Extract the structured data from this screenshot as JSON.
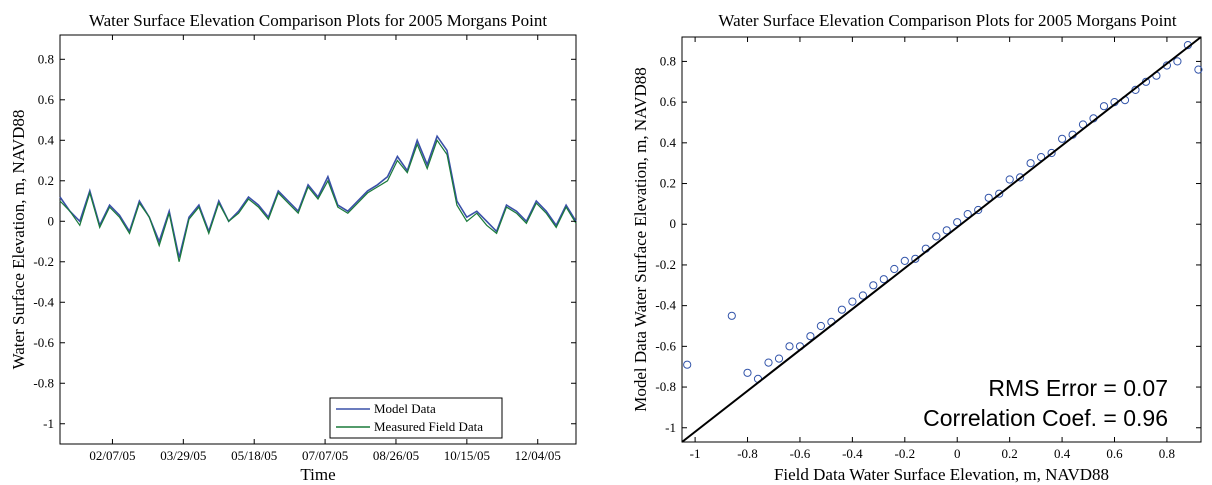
{
  "chart_data": [
    {
      "type": "line",
      "title": "Water Surface Elevation Comparison Plots for 2005 Morgans Point",
      "xlabel": "Time",
      "ylabel": "Water Surface Elevation, m, NAVD88",
      "xlim": [
        "2005-01-01",
        "2005-12-31"
      ],
      "ylim": [
        -1.1,
        0.92
      ],
      "xtick_labels": [
        "02/07/05",
        "03/29/05",
        "05/18/05",
        "07/07/05",
        "08/26/05",
        "10/15/05",
        "12/04/05"
      ],
      "yticks": [
        -1,
        -0.8,
        -0.6,
        -0.4,
        -0.2,
        0,
        0.2,
        0.4,
        0.6,
        0.8
      ],
      "legend_position": "bottom-right",
      "series": [
        {
          "name": "Model Data",
          "color": "#3a50a8",
          "x": [
            "2005-01-01",
            "2005-01-08",
            "2005-01-15",
            "2005-01-22",
            "2005-01-29",
            "2005-02-05",
            "2005-02-12",
            "2005-02-19",
            "2005-02-26",
            "2005-03-05",
            "2005-03-12",
            "2005-03-19",
            "2005-03-26",
            "2005-04-02",
            "2005-04-09",
            "2005-04-16",
            "2005-04-23",
            "2005-04-30",
            "2005-05-07",
            "2005-05-14",
            "2005-05-21",
            "2005-05-28",
            "2005-06-04",
            "2005-06-11",
            "2005-06-18",
            "2005-06-25",
            "2005-07-02",
            "2005-07-09",
            "2005-07-16",
            "2005-07-23",
            "2005-07-30",
            "2005-08-06",
            "2005-08-13",
            "2005-08-20",
            "2005-08-27",
            "2005-09-03",
            "2005-09-10",
            "2005-09-17",
            "2005-09-24",
            "2005-10-01",
            "2005-10-08",
            "2005-10-15",
            "2005-10-22",
            "2005-10-29",
            "2005-11-05",
            "2005-11-12",
            "2005-11-19",
            "2005-11-26",
            "2005-12-03",
            "2005-12-10",
            "2005-12-17",
            "2005-12-24",
            "2005-12-31"
          ],
          "y": [
            0.12,
            0.05,
            0.0,
            0.15,
            -0.02,
            0.08,
            0.03,
            -0.05,
            0.1,
            0.02,
            -0.1,
            0.05,
            -0.18,
            0.02,
            0.08,
            -0.05,
            0.1,
            0.0,
            0.05,
            0.12,
            0.08,
            0.02,
            0.15,
            0.1,
            0.05,
            0.18,
            0.12,
            0.22,
            0.08,
            0.05,
            0.1,
            0.15,
            0.18,
            0.22,
            0.32,
            0.25,
            0.4,
            0.28,
            0.42,
            0.35,
            0.1,
            0.02,
            0.05,
            0.0,
            -0.05,
            0.08,
            0.05,
            0.0,
            0.1,
            0.05,
            -0.02,
            0.08,
            0.0
          ]
        },
        {
          "name": "Measured Field Data",
          "color": "#1a7a3a",
          "x": [
            "2005-01-01",
            "2005-01-08",
            "2005-01-15",
            "2005-01-22",
            "2005-01-29",
            "2005-02-05",
            "2005-02-12",
            "2005-02-19",
            "2005-02-26",
            "2005-03-05",
            "2005-03-12",
            "2005-03-19",
            "2005-03-26",
            "2005-04-02",
            "2005-04-09",
            "2005-04-16",
            "2005-04-23",
            "2005-04-30",
            "2005-05-07",
            "2005-05-14",
            "2005-05-21",
            "2005-05-28",
            "2005-06-04",
            "2005-06-11",
            "2005-06-18",
            "2005-06-25",
            "2005-07-02",
            "2005-07-09",
            "2005-07-16",
            "2005-07-23",
            "2005-07-30",
            "2005-08-06",
            "2005-08-13",
            "2005-08-20",
            "2005-08-27",
            "2005-09-03",
            "2005-09-10",
            "2005-09-17",
            "2005-09-24",
            "2005-10-01",
            "2005-10-08",
            "2005-10-15",
            "2005-10-22",
            "2005-10-29",
            "2005-11-05",
            "2005-11-12",
            "2005-11-19",
            "2005-11-26",
            "2005-12-03",
            "2005-12-10",
            "2005-12-17",
            "2005-12-24",
            "2005-12-31"
          ],
          "y": [
            0.1,
            0.05,
            -0.02,
            0.14,
            -0.03,
            0.07,
            0.02,
            -0.06,
            0.09,
            0.02,
            -0.12,
            0.04,
            -0.2,
            0.01,
            0.07,
            -0.06,
            0.09,
            0.0,
            0.04,
            0.11,
            0.07,
            0.01,
            0.14,
            0.09,
            0.04,
            0.17,
            0.11,
            0.2,
            0.07,
            0.04,
            0.09,
            0.14,
            0.17,
            0.2,
            0.3,
            0.24,
            0.38,
            0.26,
            0.4,
            0.33,
            0.08,
            0.0,
            0.04,
            -0.02,
            -0.06,
            0.07,
            0.04,
            -0.01,
            0.09,
            0.04,
            -0.03,
            0.07,
            -0.01
          ]
        }
      ]
    },
    {
      "type": "scatter",
      "title": "Water Surface Elevation Comparison Plots for 2005 Morgans Point",
      "xlabel": "Field Data Water Surface Elevation, m, NAVD88",
      "ylabel": "Model Data Water Surface Elevation, m, NAVD88",
      "xlim": [
        -1.05,
        0.93
      ],
      "ylim": [
        -1.07,
        0.92
      ],
      "xticks": [
        -1,
        -0.8,
        -0.6,
        -0.4,
        -0.2,
        0,
        0.2,
        0.4,
        0.6,
        0.8
      ],
      "yticks": [
        -1,
        -0.8,
        -0.6,
        -0.4,
        -0.2,
        0,
        0.2,
        0.4,
        0.6,
        0.8
      ],
      "marker_color": "#3355aa",
      "fit_line": {
        "x": [
          -1.05,
          0.93
        ],
        "y": [
          -1.07,
          0.92
        ],
        "color": "#000000"
      },
      "annotations": [
        "RMS Error = 0.07",
        "Correlation Coef. = 0.96"
      ],
      "points": {
        "x": [
          -1.03,
          -0.86,
          -0.8,
          -0.76,
          -0.72,
          -0.68,
          -0.64,
          -0.6,
          -0.56,
          -0.52,
          -0.48,
          -0.44,
          -0.4,
          -0.36,
          -0.32,
          -0.28,
          -0.24,
          -0.2,
          -0.16,
          -0.12,
          -0.08,
          -0.04,
          0.0,
          0.04,
          0.08,
          0.12,
          0.16,
          0.2,
          0.24,
          0.28,
          0.32,
          0.36,
          0.4,
          0.44,
          0.48,
          0.52,
          0.56,
          0.6,
          0.64,
          0.68,
          0.72,
          0.76,
          0.8,
          0.84,
          0.88,
          0.92
        ],
        "y": [
          -0.69,
          -0.45,
          -0.73,
          -0.76,
          -0.68,
          -0.66,
          -0.6,
          -0.6,
          -0.55,
          -0.5,
          -0.48,
          -0.42,
          -0.38,
          -0.35,
          -0.3,
          -0.27,
          -0.22,
          -0.18,
          -0.17,
          -0.12,
          -0.06,
          -0.03,
          0.01,
          0.05,
          0.07,
          0.13,
          0.15,
          0.22,
          0.23,
          0.3,
          0.33,
          0.35,
          0.42,
          0.44,
          0.49,
          0.52,
          0.58,
          0.6,
          0.61,
          0.66,
          0.7,
          0.73,
          0.78,
          0.8,
          0.88,
          0.76
        ]
      }
    }
  ]
}
